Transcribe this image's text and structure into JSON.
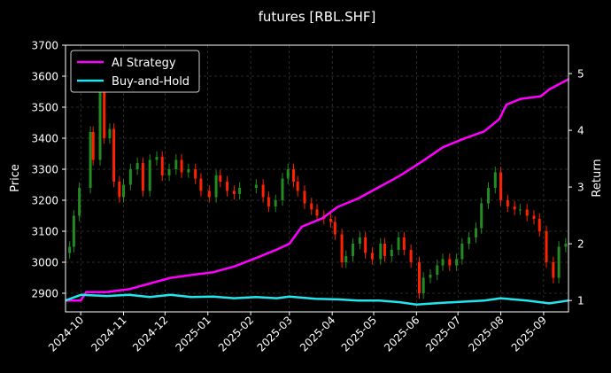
{
  "chart_data": {
    "type": "candlestick+line",
    "title": "futures [RBL.SHF]",
    "xlabel": "",
    "ylabel": "Price",
    "ylabel_right": "Return",
    "x_range": [
      "2024-09-20",
      "2025-09-19"
    ],
    "ylim": [
      2840,
      3700
    ],
    "ylim_right": [
      0.8,
      5.5
    ],
    "yticks": [
      2900,
      3000,
      3100,
      3200,
      3300,
      3400,
      3500,
      3600,
      3700
    ],
    "yticks_right": [
      1,
      2,
      3,
      4,
      5
    ],
    "xticks": [
      "2024-10",
      "2024-11",
      "2024-12",
      "2025-01",
      "2025-02",
      "2025-03",
      "2025-04",
      "2025-05",
      "2025-06",
      "2025-07",
      "2025-08",
      "2025-09"
    ],
    "xtick_dates": [
      "2024-10-01",
      "2024-11-01",
      "2024-12-01",
      "2025-01-01",
      "2025-02-01",
      "2025-03-01",
      "2025-04-01",
      "2025-05-01",
      "2025-06-01",
      "2025-07-01",
      "2025-08-01",
      "2025-09-01"
    ],
    "grid": true,
    "legend": {
      "placement": "top-left",
      "entries": [
        "AI Strategy",
        "Buy-and-Hold"
      ]
    },
    "colors": {
      "up": "#228b22",
      "down": "#ff2200",
      "ai": "#ff00ff",
      "bh": "#22e5ee",
      "grid": "#555555",
      "background": "#000000"
    },
    "price_close": [
      [
        "2024-09-23",
        3050
      ],
      [
        "2024-09-26",
        3150
      ],
      [
        "2024-09-30",
        3240
      ],
      [
        "2024-10-08",
        3420
      ],
      [
        "2024-10-10",
        3330
      ],
      [
        "2024-10-15",
        3550
      ],
      [
        "2024-10-18",
        3400
      ],
      [
        "2024-10-22",
        3430
      ],
      [
        "2024-10-25",
        3260
      ],
      [
        "2024-10-29",
        3210
      ],
      [
        "2024-11-01",
        3250
      ],
      [
        "2024-11-06",
        3300
      ],
      [
        "2024-11-11",
        3320
      ],
      [
        "2024-11-15",
        3230
      ],
      [
        "2024-11-20",
        3330
      ],
      [
        "2024-11-25",
        3340
      ],
      [
        "2024-11-29",
        3280
      ],
      [
        "2024-12-04",
        3300
      ],
      [
        "2024-12-09",
        3330
      ],
      [
        "2024-12-13",
        3290
      ],
      [
        "2024-12-18",
        3300
      ],
      [
        "2024-12-23",
        3270
      ],
      [
        "2024-12-27",
        3230
      ],
      [
        "2025-01-02",
        3210
      ],
      [
        "2025-01-07",
        3280
      ],
      [
        "2025-01-10",
        3260
      ],
      [
        "2025-01-15",
        3230
      ],
      [
        "2025-01-20",
        3220
      ],
      [
        "2025-01-24",
        3240
      ],
      [
        "2025-02-05",
        3250
      ],
      [
        "2025-02-10",
        3210
      ],
      [
        "2025-02-14",
        3180
      ],
      [
        "2025-02-19",
        3200
      ],
      [
        "2025-02-24",
        3270
      ],
      [
        "2025-02-28",
        3300
      ],
      [
        "2025-03-04",
        3260
      ],
      [
        "2025-03-07",
        3230
      ],
      [
        "2025-03-12",
        3190
      ],
      [
        "2025-03-17",
        3170
      ],
      [
        "2025-03-21",
        3150
      ],
      [
        "2025-03-26",
        3140
      ],
      [
        "2025-03-31",
        3130
      ],
      [
        "2025-04-03",
        3090
      ],
      [
        "2025-04-08",
        3000
      ],
      [
        "2025-04-11",
        3020
      ],
      [
        "2025-04-16",
        3060
      ],
      [
        "2025-04-21",
        3080
      ],
      [
        "2025-04-25",
        3030
      ],
      [
        "2025-04-30",
        3010
      ],
      [
        "2025-05-06",
        3060
      ],
      [
        "2025-05-09",
        3020
      ],
      [
        "2025-05-14",
        3040
      ],
      [
        "2025-05-19",
        3080
      ],
      [
        "2025-05-23",
        3040
      ],
      [
        "2025-05-28",
        3000
      ],
      [
        "2025-06-03",
        2900
      ],
      [
        "2025-06-06",
        2950
      ],
      [
        "2025-06-11",
        2960
      ],
      [
        "2025-06-16",
        2990
      ],
      [
        "2025-06-20",
        3010
      ],
      [
        "2025-06-25",
        2990
      ],
      [
        "2025-06-30",
        3010
      ],
      [
        "2025-07-04",
        3060
      ],
      [
        "2025-07-09",
        3080
      ],
      [
        "2025-07-14",
        3110
      ],
      [
        "2025-07-18",
        3190
      ],
      [
        "2025-07-23",
        3240
      ],
      [
        "2025-07-28",
        3290
      ],
      [
        "2025-08-01",
        3200
      ],
      [
        "2025-08-06",
        3180
      ],
      [
        "2025-08-11",
        3170
      ],
      [
        "2025-08-15",
        3170
      ],
      [
        "2025-08-20",
        3150
      ],
      [
        "2025-08-25",
        3140
      ],
      [
        "2025-08-29",
        3100
      ],
      [
        "2025-09-03",
        3000
      ],
      [
        "2025-09-08",
        2950
      ],
      [
        "2025-09-12",
        3050
      ],
      [
        "2025-09-17",
        3060
      ]
    ],
    "series": [
      {
        "name": "AI Strategy",
        "axis": "right",
        "points": [
          [
            "2024-09-20",
            1.0
          ],
          [
            "2024-10-01",
            1.0
          ],
          [
            "2024-10-05",
            1.15
          ],
          [
            "2024-10-20",
            1.15
          ],
          [
            "2024-11-05",
            1.2
          ],
          [
            "2024-11-20",
            1.3
          ],
          [
            "2024-12-05",
            1.4
          ],
          [
            "2024-12-20",
            1.45
          ],
          [
            "2025-01-05",
            1.5
          ],
          [
            "2025-01-20",
            1.6
          ],
          [
            "2025-02-05",
            1.75
          ],
          [
            "2025-02-20",
            1.9
          ],
          [
            "2025-03-01",
            2.0
          ],
          [
            "2025-03-10",
            2.3
          ],
          [
            "2025-03-25",
            2.45
          ],
          [
            "2025-04-05",
            2.65
          ],
          [
            "2025-04-20",
            2.8
          ],
          [
            "2025-05-05",
            3.0
          ],
          [
            "2025-05-20",
            3.2
          ],
          [
            "2025-06-05",
            3.45
          ],
          [
            "2025-06-20",
            3.7
          ],
          [
            "2025-07-05",
            3.85
          ],
          [
            "2025-07-20",
            3.98
          ],
          [
            "2025-07-31",
            4.2
          ],
          [
            "2025-08-05",
            4.45
          ],
          [
            "2025-08-15",
            4.55
          ],
          [
            "2025-08-30",
            4.6
          ],
          [
            "2025-09-05",
            4.72
          ],
          [
            "2025-09-19",
            4.9
          ]
        ]
      },
      {
        "name": "Buy-and-Hold",
        "axis": "right",
        "points": [
          [
            "2024-09-20",
            1.0
          ],
          [
            "2024-10-01",
            1.1
          ],
          [
            "2024-10-20",
            1.08
          ],
          [
            "2024-11-05",
            1.1
          ],
          [
            "2024-11-20",
            1.06
          ],
          [
            "2024-12-05",
            1.1
          ],
          [
            "2024-12-20",
            1.06
          ],
          [
            "2025-01-05",
            1.07
          ],
          [
            "2025-01-20",
            1.04
          ],
          [
            "2025-02-05",
            1.06
          ],
          [
            "2025-02-20",
            1.04
          ],
          [
            "2025-03-01",
            1.07
          ],
          [
            "2025-03-20",
            1.03
          ],
          [
            "2025-04-05",
            1.02
          ],
          [
            "2025-04-20",
            1.0
          ],
          [
            "2025-05-05",
            1.0
          ],
          [
            "2025-05-20",
            0.97
          ],
          [
            "2025-06-01",
            0.93
          ],
          [
            "2025-06-20",
            0.96
          ],
          [
            "2025-07-05",
            0.98
          ],
          [
            "2025-07-20",
            1.0
          ],
          [
            "2025-08-01",
            1.04
          ],
          [
            "2025-08-20",
            1.0
          ],
          [
            "2025-09-05",
            0.95
          ],
          [
            "2025-09-19",
            1.0
          ]
        ]
      }
    ]
  }
}
